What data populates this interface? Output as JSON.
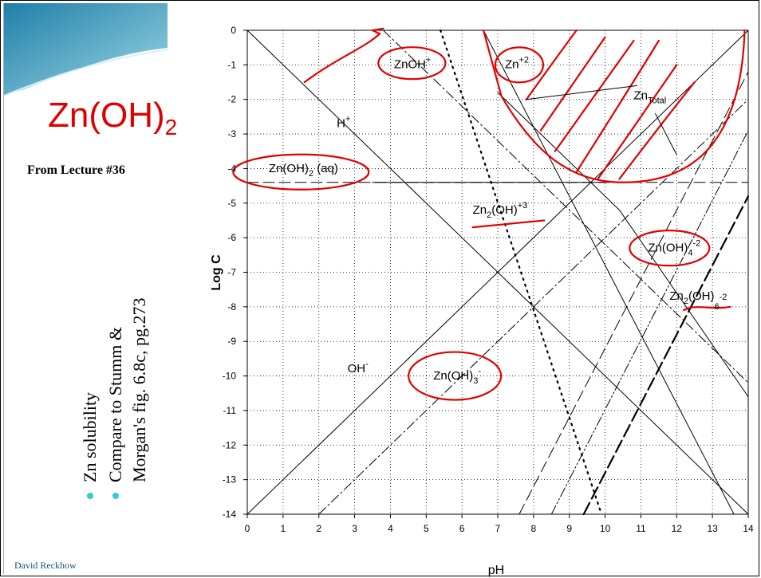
{
  "slide": {
    "title_main": "Zn(OH)",
    "title_sub": "2",
    "from_lecture": "From Lecture #36",
    "bullets": [
      "Zn solubility",
      "Compare to Stumm &",
      "Morgan's fig. 6.8c, pg.273"
    ],
    "author": "David Reckhow"
  },
  "colors": {
    "annotation": "#e00000",
    "bullet": "#33cccc",
    "banner": "#4fb3c8"
  },
  "chart_data": {
    "type": "line",
    "xlabel": "pH",
    "ylabel": "Log C",
    "xlim": [
      0,
      14
    ],
    "ylim": [
      -14,
      0
    ],
    "xticks": [
      0,
      1,
      2,
      3,
      4,
      5,
      6,
      7,
      8,
      9,
      10,
      11,
      12,
      13,
      14
    ],
    "yticks": [
      0,
      -1,
      -2,
      -3,
      -4,
      -5,
      -6,
      -7,
      -8,
      -9,
      -10,
      -11,
      -12,
      -13,
      -14
    ],
    "grid": "dotted",
    "series": [
      {
        "style": "solid",
        "points": [
          [
            0,
            0
          ],
          [
            14,
            -14
          ]
        ]
      },
      {
        "style": "solid",
        "points": [
          [
            0,
            -14
          ],
          [
            14,
            0
          ]
        ]
      },
      {
        "style": "longdash",
        "points": [
          [
            0,
            -4.4
          ],
          [
            14,
            -4.4
          ]
        ]
      },
      {
        "style": "dashdot",
        "points": [
          [
            3.8,
            0
          ],
          [
            14,
            -10.2
          ]
        ]
      },
      {
        "style": "dotted",
        "points": [
          [
            5.4,
            0
          ],
          [
            9.9,
            -14
          ]
        ]
      },
      {
        "style": "solid",
        "points": [
          [
            6.6,
            0
          ],
          [
            13.6,
            -14
          ]
        ]
      },
      {
        "style": "solid",
        "points": [
          [
            7,
            -1.8
          ],
          [
            10.4,
            -5.2
          ],
          [
            14,
            -10.6
          ]
        ]
      },
      {
        "style": "dashdot",
        "points": [
          [
            2,
            -14
          ],
          [
            6.3,
            -9.7
          ],
          [
            14,
            -2
          ]
        ]
      },
      {
        "style": "longdash",
        "points": [
          [
            7.6,
            -14
          ],
          [
            14,
            -1.2
          ]
        ]
      },
      {
        "style": "dashdotdot",
        "points": [
          [
            8.5,
            -14
          ],
          [
            14,
            -2.9
          ]
        ]
      },
      {
        "style": "heavydash",
        "points": [
          [
            9.4,
            -14
          ],
          [
            14,
            -4.8
          ]
        ]
      },
      {
        "style": "solid",
        "points": [
          [
            3.5,
            -4.4
          ],
          [
            7,
            -4.4
          ],
          [
            9,
            -4.4
          ],
          [
            10,
            -4.4
          ]
        ]
      }
    ],
    "species_labels": [
      {
        "base": "ZnOH",
        "sup": "+",
        "x": 4.1,
        "y": -1.1
      },
      {
        "base": "Zn",
        "sup": "+2",
        "x": 7.2,
        "y": -1.1
      },
      {
        "base": "Zn",
        "sub": "Total",
        "x": 10.8,
        "y": -2.0
      },
      {
        "base": "H",
        "sup": "+",
        "x": 2.5,
        "y": -2.8
      },
      {
        "base": "Zn(OH)",
        "sub": "2",
        "after": " (aq)",
        "x": 0.6,
        "y": -4.1
      },
      {
        "base": "Zn",
        "sub": "2",
        "mid": "(OH)",
        "sup": "+3",
        "x": 6.3,
        "y": -5.3
      },
      {
        "base": "Zn(OH)",
        "sub": "4",
        "sup": "-2",
        "x": 11.2,
        "y": -6.4
      },
      {
        "base": "Zn",
        "sub": "2",
        "mid": "(OH)",
        "sup2": "-2",
        "sub2": "6",
        "x": 11.8,
        "y": -7.8
      },
      {
        "base": "OH",
        "sup": "-",
        "x": 2.8,
        "y": -9.9
      },
      {
        "base": "Zn(OH)",
        "sub": "3",
        "sup": "-",
        "x": 5.2,
        "y": -10.1
      }
    ]
  }
}
